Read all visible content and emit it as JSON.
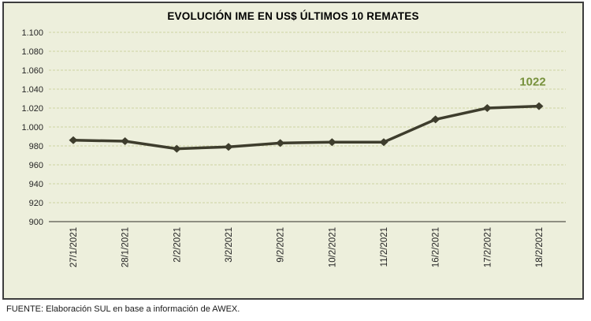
{
  "chart_data": {
    "type": "line",
    "title": "EVOLUCIÓN IME EN US$ ÚLTIMOS 10 REMATES",
    "categories": [
      "27/1/2021",
      "28/1/2021",
      "2/2/2021",
      "3/2/2021",
      "9/2/2021",
      "10/2/2021",
      "11/2/2021",
      "16/2/2021",
      "17/2/2021",
      "18/2/2021"
    ],
    "values": [
      986,
      985,
      977,
      979,
      983,
      984,
      984,
      1008,
      1020,
      1022
    ],
    "xlabel": "",
    "ylabel": "",
    "ylim": [
      900,
      1100
    ],
    "ytick_step": 20,
    "y_tick_labels": [
      "1.100",
      "1.080",
      "1.060",
      "1.040",
      "1.020",
      "1.000",
      "980",
      "960",
      "940",
      "920",
      "900"
    ],
    "grid": "horizontal-dashed",
    "legend_position": "none",
    "marker": "diamond",
    "annotation": {
      "text": "1022",
      "point_index": 9
    },
    "colors": {
      "line": "#3E3D2D",
      "marker": "#3E3D2D",
      "annotation_text": "#77913C",
      "plot_background": "#EDEFDC",
      "gridline": "#CDD3A2",
      "axis_line": "#6E6E64",
      "tick_text": "#262626",
      "border": "#3D3D3D"
    }
  },
  "footer": {
    "text": "FUENTE: Elaboración SUL en base a información de AWEX."
  }
}
